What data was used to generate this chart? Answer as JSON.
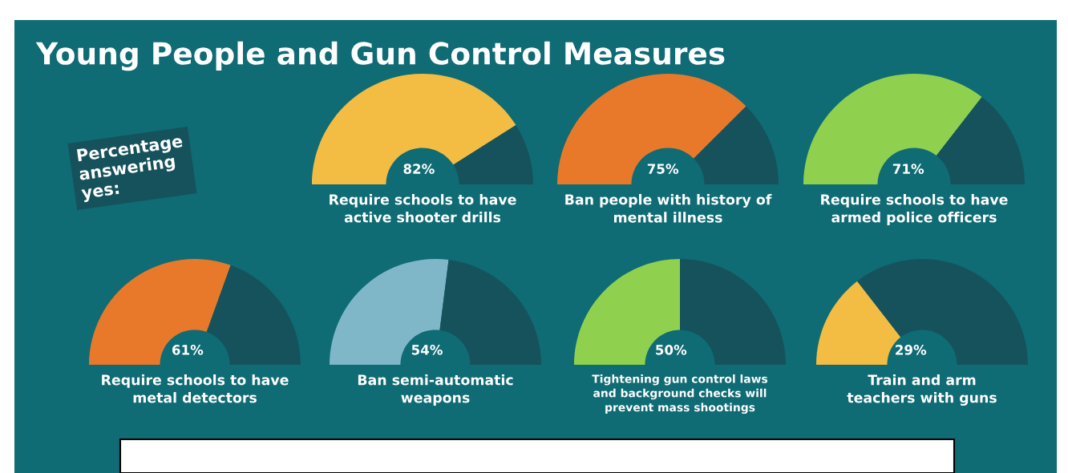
{
  "chart_data": [
    {
      "type": "other",
      "title": "Young People and Gun Control Measures",
      "annotations": [
        "Percentage answering yes:"
      ]
    },
    {
      "type": "donut",
      "title": "Require schools to have active shooter drills",
      "categories": [
        null,
        null
      ],
      "values": [
        82,
        18
      ],
      "colors": [
        "#f2bd42",
        "#16525c"
      ],
      "value_labels": [
        "82%",
        null
      ]
    },
    {
      "type": "donut",
      "title": "Ban people with history of mental illness",
      "categories": [
        null,
        null
      ],
      "values": [
        75,
        25
      ],
      "colors": [
        "#e8792a",
        "#16525c"
      ],
      "value_labels": [
        "75%",
        null
      ]
    },
    {
      "type": "donut",
      "title": "Require schools to have armed police officers",
      "categories": [
        null,
        null
      ],
      "values": [
        71,
        29
      ],
      "colors": [
        "#8fd14f",
        "#16525c"
      ],
      "value_labels": [
        "71%",
        null
      ]
    },
    {
      "type": "donut",
      "title": "Require schools to have metal detectors",
      "categories": [
        null,
        null
      ],
      "values": [
        61,
        39
      ],
      "colors": [
        "#e8792a",
        "#16525c"
      ],
      "value_labels": [
        "61%",
        null
      ]
    },
    {
      "type": "donut",
      "title": "Ban semi-automatic weapons",
      "categories": [
        null,
        null
      ],
      "values": [
        54,
        46
      ],
      "colors": [
        "#7fb7c9",
        "#16525c"
      ],
      "value_labels": [
        "54%",
        null
      ]
    },
    {
      "type": "donut",
      "title": "Tightening gun control laws and background checks will prevent mass shootings",
      "categories": [
        null,
        null
      ],
      "values": [
        50,
        50
      ],
      "colors": [
        "#8fd14f",
        "#16525c"
      ],
      "value_labels": [
        "50%",
        null
      ]
    },
    {
      "type": "donut",
      "title": "Train and arm teachers with guns",
      "categories": [
        null,
        null
      ],
      "values": [
        29,
        71
      ],
      "colors": [
        "#f2bd42",
        "#16525c"
      ],
      "value_labels": [
        "29%",
        null
      ]
    }
  ]
}
